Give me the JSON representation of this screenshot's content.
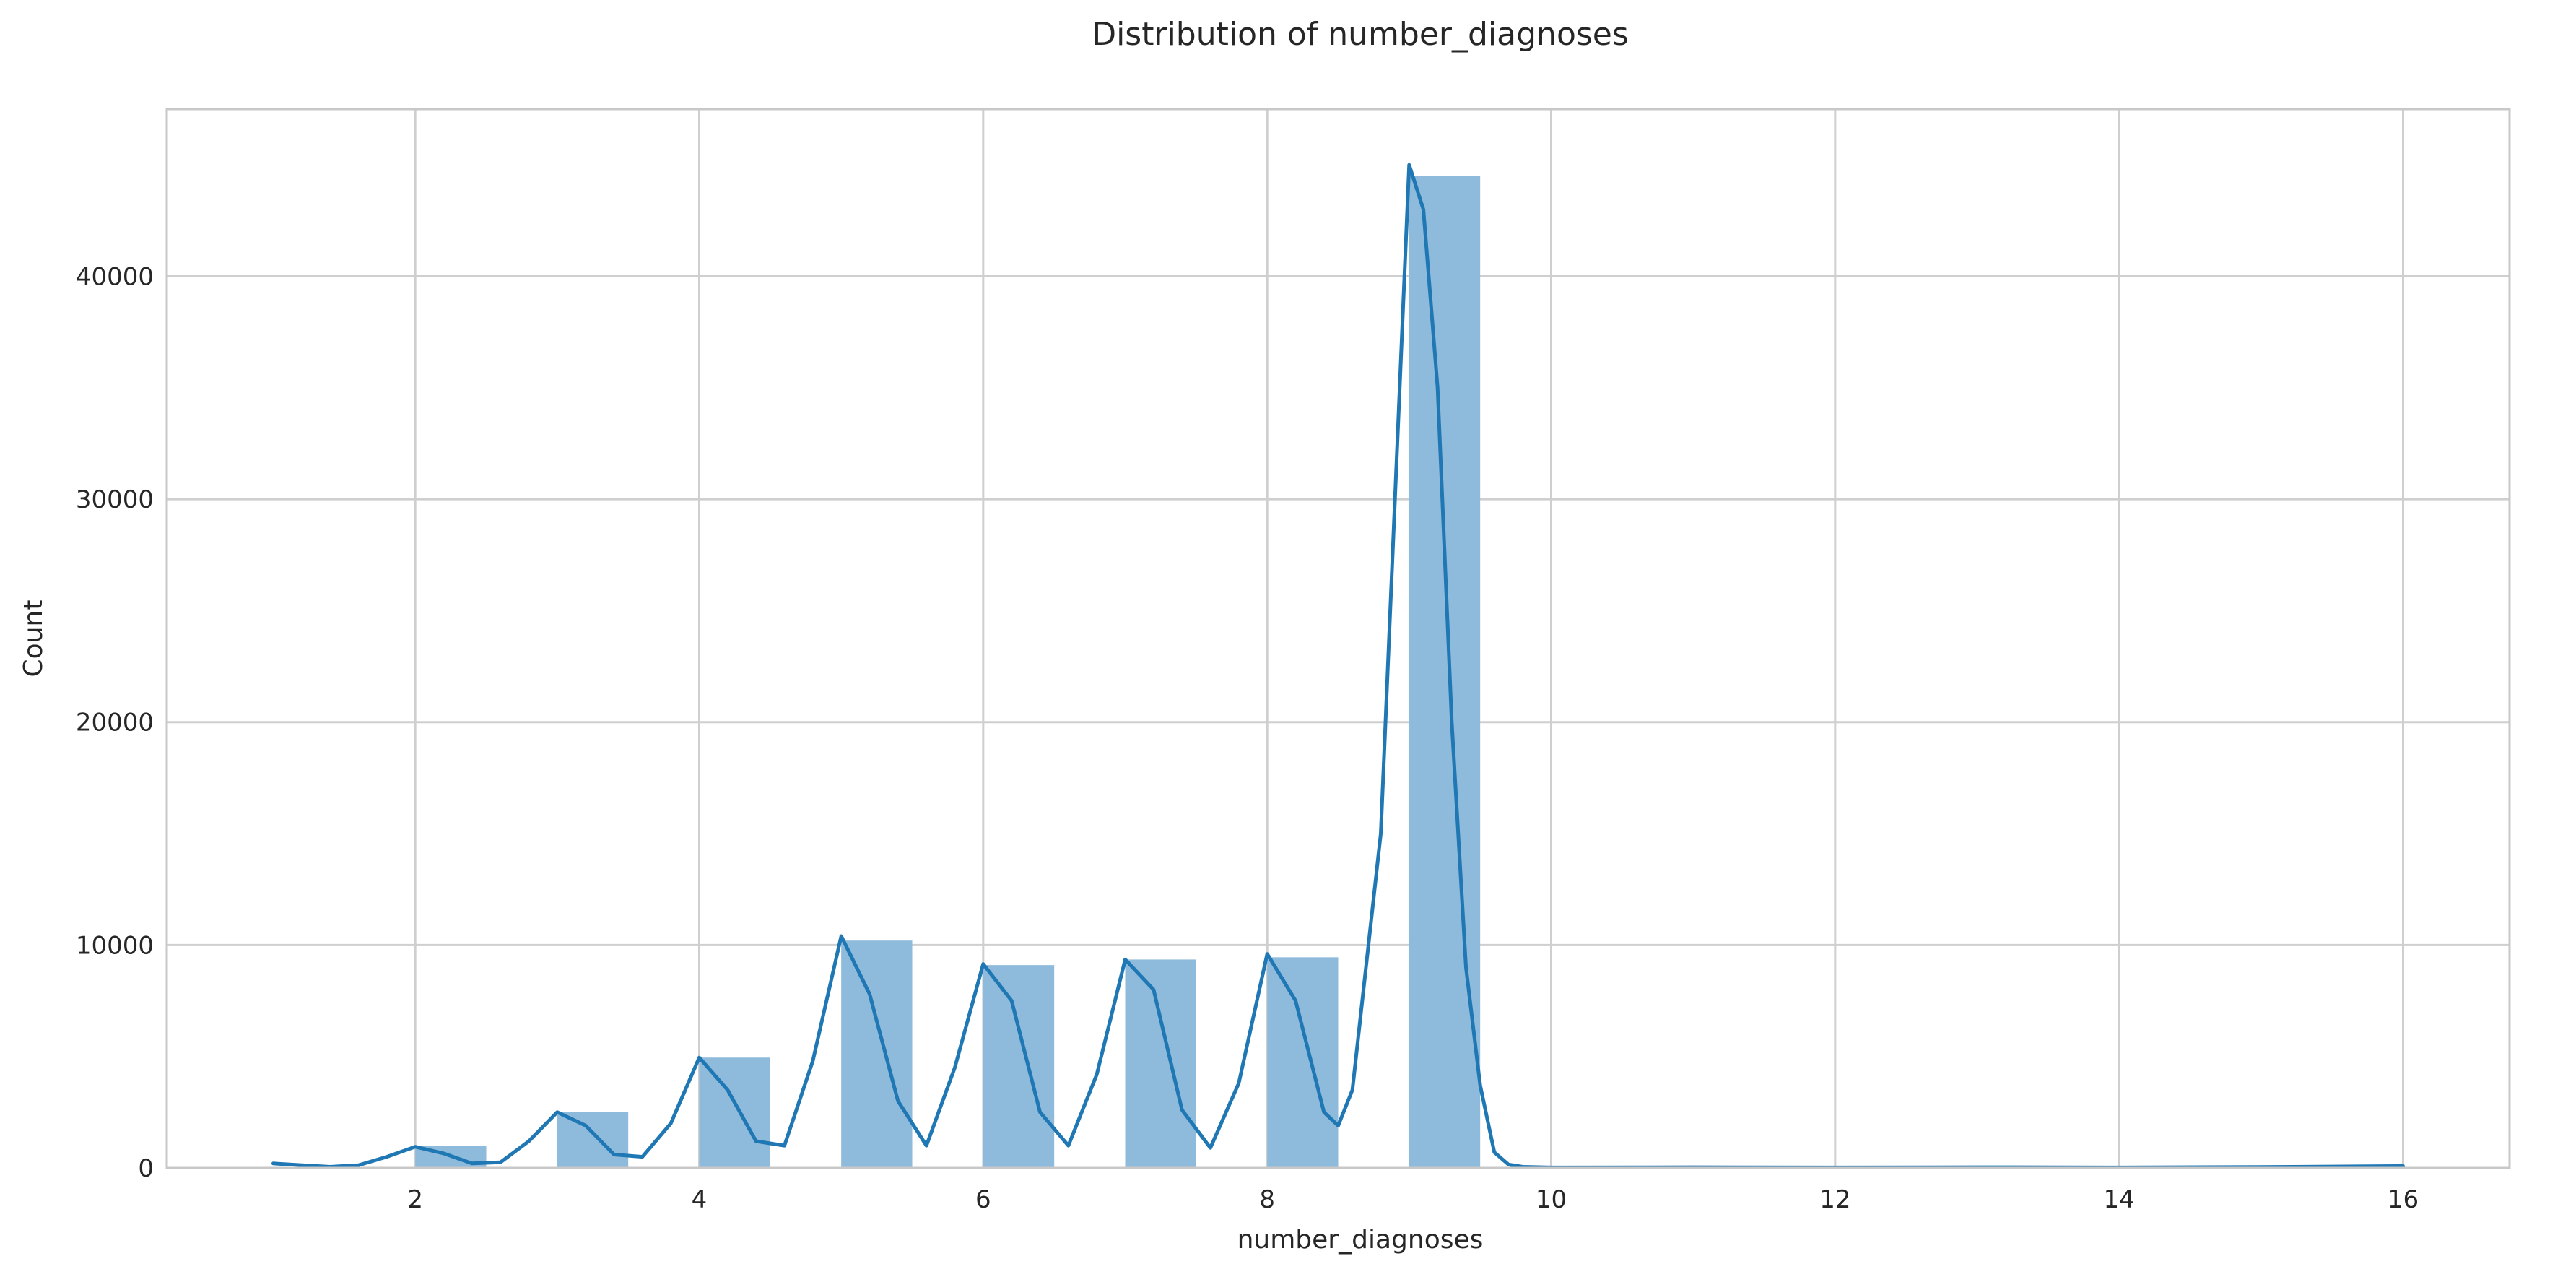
{
  "chart_data": {
    "type": "bar",
    "title": "Distribution of number_diagnoses",
    "xlabel": "number_diagnoses",
    "ylabel": "Count",
    "xlim": [
      0.25,
      16.75
    ],
    "ylim": [
      0,
      47500
    ],
    "grid": true,
    "x_ticks": [
      2,
      4,
      6,
      8,
      10,
      12,
      14,
      16
    ],
    "y_ticks": [
      0,
      10000,
      20000,
      30000,
      40000
    ],
    "bin_width": 0.5,
    "bins": [
      {
        "x0": 1,
        "count": 0
      },
      {
        "x0": 2,
        "count": 1000
      },
      {
        "x0": 3,
        "count": 2500
      },
      {
        "x0": 4,
        "count": 4950
      },
      {
        "x0": 5,
        "count": 10200
      },
      {
        "x0": 6,
        "count": 9100
      },
      {
        "x0": 7,
        "count": 9350
      },
      {
        "x0": 8,
        "count": 9450
      },
      {
        "x0": 9,
        "count": 44500
      },
      {
        "x0": 10,
        "count": 0
      },
      {
        "x0": 11,
        "count": 0
      },
      {
        "x0": 12,
        "count": 0
      },
      {
        "x0": 13,
        "count": 0
      },
      {
        "x0": 14,
        "count": 0
      },
      {
        "x0": 15,
        "count": 0
      },
      {
        "x0": 16,
        "count": 0
      }
    ],
    "kde": {
      "x": [
        1.0,
        1.2,
        1.4,
        1.6,
        1.8,
        2.0,
        2.2,
        2.4,
        2.6,
        2.8,
        3.0,
        3.2,
        3.4,
        3.6,
        3.8,
        4.0,
        4.2,
        4.4,
        4.6,
        4.8,
        5.0,
        5.2,
        5.4,
        5.6,
        5.8,
        6.0,
        6.2,
        6.4,
        6.6,
        6.8,
        7.0,
        7.2,
        7.4,
        7.6,
        7.8,
        8.0,
        8.2,
        8.4,
        8.5,
        8.6,
        8.8,
        9.0,
        9.1,
        9.2,
        9.3,
        9.4,
        9.5,
        9.6,
        9.7,
        9.8,
        10.0,
        11.0,
        12.0,
        13.0,
        14.0,
        15.0,
        16.0
      ],
      "y": [
        200,
        120,
        50,
        120,
        500,
        950,
        650,
        200,
        250,
        1200,
        2500,
        1900,
        600,
        500,
        2000,
        4950,
        3500,
        1200,
        1000,
        4800,
        10400,
        7800,
        3000,
        1000,
        4500,
        9150,
        7500,
        2500,
        1000,
        4200,
        9350,
        8000,
        2600,
        900,
        3800,
        9600,
        7500,
        2500,
        1900,
        3500,
        15000,
        45000,
        43000,
        35000,
        20000,
        9000,
        3700,
        700,
        150,
        50,
        20,
        30,
        20,
        30,
        20,
        40,
        80
      ]
    },
    "colors": {
      "bar": "#8ebadb",
      "line": "#1f77b4",
      "grid": "#cfcfcf"
    }
  }
}
